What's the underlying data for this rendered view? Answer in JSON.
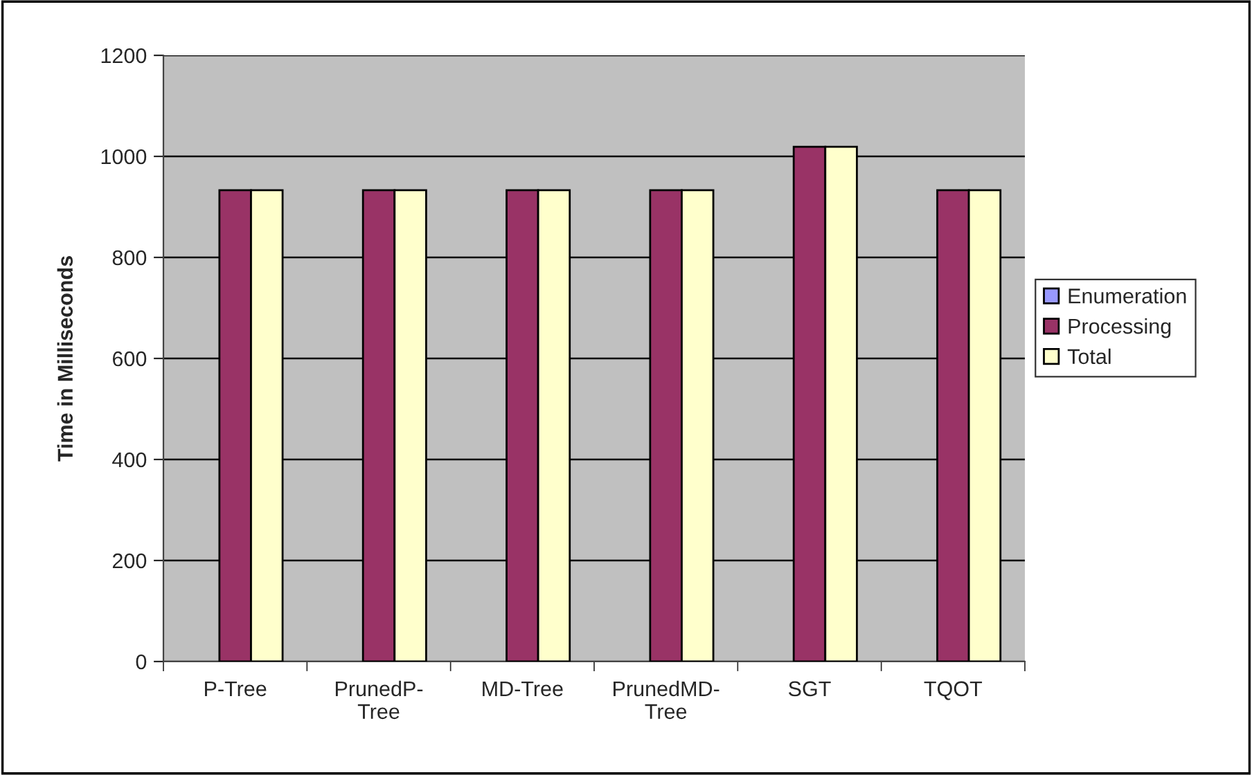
{
  "chart_data": {
    "type": "bar",
    "ylabel": "Time in Milliseconds",
    "categories": [
      "P-Tree",
      "PrunedP-\nTree",
      "MD-Tree",
      "PrunedMD-\nTree",
      "SGT",
      "TQOT"
    ],
    "series": [
      {
        "name": "Enumeration",
        "color": "#9999ff",
        "values": [
          0,
          0,
          0,
          0,
          0,
          0
        ]
      },
      {
        "name": "Processing",
        "color": "#993366",
        "values": [
          933,
          933,
          933,
          933,
          1019,
          933
        ]
      },
      {
        "name": "Total",
        "color": "#ffffcc",
        "values": [
          933,
          933,
          933,
          933,
          1019,
          933
        ]
      }
    ],
    "ylim": [
      0,
      1200
    ],
    "yticks": [
      0,
      200,
      400,
      600,
      800,
      1000,
      1200
    ],
    "grid": "y",
    "legend": "right"
  }
}
